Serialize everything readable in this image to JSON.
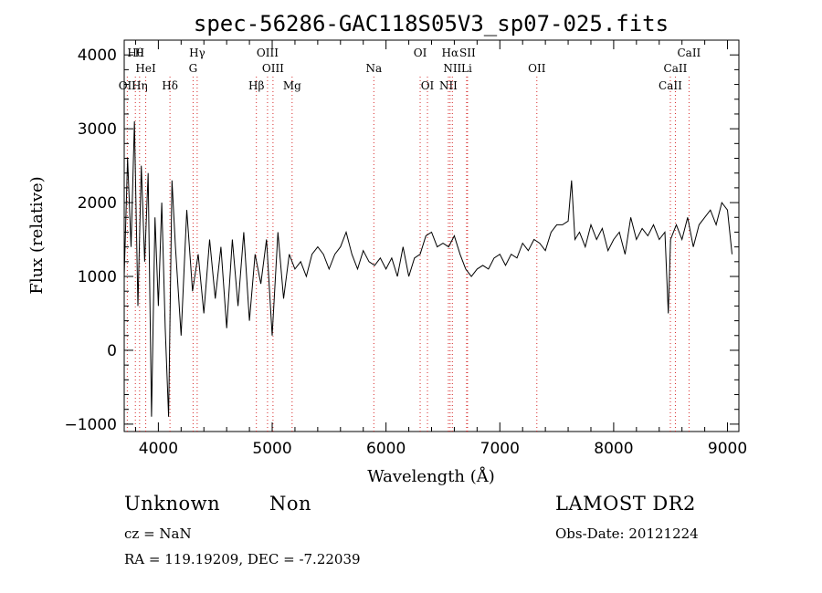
{
  "chart_data": {
    "type": "line",
    "title": "spec-56286-GAC118S05V3_sp07-025.fits",
    "xlabel": "Wavelength (Å)",
    "ylabel": "Flux (relative)",
    "xlim": [
      3700,
      9100
    ],
    "ylim": [
      -1100,
      4200
    ],
    "xticks": [
      4000,
      5000,
      6000,
      7000,
      8000,
      9000
    ],
    "yticks": [
      -1000,
      0,
      1000,
      2000,
      3000,
      4000
    ],
    "line_color": "#000000",
    "marker_color": "#d62828",
    "grid": false,
    "series": [
      {
        "x": [
          3700,
          3730,
          3760,
          3790,
          3820,
          3850,
          3880,
          3910,
          3940,
          3970,
          4000,
          4030,
          4060,
          4090,
          4120,
          4150,
          4200,
          4250,
          4300,
          4350,
          4400,
          4450,
          4500,
          4550,
          4600,
          4650,
          4700,
          4750,
          4800,
          4850,
          4900,
          4950,
          5000,
          5050,
          5100,
          5150,
          5200,
          5250,
          5300,
          5350,
          5400,
          5450,
          5500,
          5550,
          5600,
          5650,
          5700,
          5750,
          5800,
          5850,
          5900,
          5950,
          6000,
          6050,
          6100,
          6150,
          6200,
          6250,
          6300,
          6350,
          6400,
          6450,
          6500,
          6550,
          6600,
          6650,
          6700,
          6750,
          6800,
          6850,
          6900,
          6950,
          7000,
          7050,
          7100,
          7150,
          7200,
          7250,
          7300,
          7350,
          7400,
          7450,
          7500,
          7550,
          7600,
          7630,
          7660,
          7700,
          7750,
          7800,
          7850,
          7900,
          7950,
          8000,
          8050,
          8100,
          8150,
          8200,
          8250,
          8300,
          8350,
          8400,
          8450,
          8480,
          8500,
          8550,
          8600,
          8650,
          8700,
          8750,
          8800,
          8850,
          8900,
          8950,
          9000,
          9040
        ],
        "y": [
          1000,
          2600,
          1400,
          3100,
          600,
          2500,
          1200,
          2400,
          -900,
          1800,
          600,
          2000,
          300,
          -900,
          2300,
          1400,
          200,
          1900,
          800,
          1300,
          500,
          1500,
          700,
          1400,
          300,
          1500,
          600,
          1600,
          400,
          1300,
          900,
          1500,
          200,
          1600,
          700,
          1300,
          1100,
          1200,
          1000,
          1300,
          1400,
          1300,
          1100,
          1300,
          1400,
          1600,
          1300,
          1100,
          1350,
          1200,
          1150,
          1250,
          1100,
          1250,
          1000,
          1400,
          1000,
          1250,
          1300,
          1550,
          1600,
          1400,
          1450,
          1400,
          1550,
          1300,
          1100,
          1000,
          1100,
          1150,
          1100,
          1250,
          1300,
          1150,
          1300,
          1250,
          1450,
          1350,
          1500,
          1450,
          1350,
          1600,
          1700,
          1700,
          1750,
          2300,
          1500,
          1600,
          1400,
          1700,
          1500,
          1650,
          1350,
          1500,
          1600,
          1300,
          1800,
          1500,
          1650,
          1550,
          1700,
          1500,
          1600,
          500,
          1500,
          1700,
          1500,
          1800,
          1400,
          1700,
          1800,
          1900,
          1700,
          2000,
          1900,
          1300
        ]
      }
    ],
    "line_labels": [
      {
        "text": "Hθ",
        "x": 3798,
        "row": 1
      },
      {
        "text": "H",
        "x": 3835,
        "row": 1
      },
      {
        "text": "HeI",
        "x": 3889,
        "row": 2
      },
      {
        "text": "OII",
        "x": 3727,
        "row": 3
      },
      {
        "text": "Hη",
        "x": 3835,
        "row": 3
      },
      {
        "text": "Hδ",
        "x": 4102,
        "row": 3
      },
      {
        "text": "Hγ",
        "x": 4341,
        "row": 1
      },
      {
        "text": "G",
        "x": 4305,
        "row": 2
      },
      {
        "text": "OIII",
        "x": 4959,
        "row": 1
      },
      {
        "text": "OIII",
        "x": 5007,
        "row": 2
      },
      {
        "text": "Hβ",
        "x": 4861,
        "row": 3
      },
      {
        "text": "Mg",
        "x": 5175,
        "row": 3
      },
      {
        "text": "Na",
        "x": 5893,
        "row": 2
      },
      {
        "text": "OI",
        "x": 6300,
        "row": 1
      },
      {
        "text": "OI",
        "x": 6364,
        "row": 3
      },
      {
        "text": "Hα",
        "x": 6563,
        "row": 1
      },
      {
        "text": "SII",
        "x": 6716,
        "row": 1
      },
      {
        "text": "NII",
        "x": 6583,
        "row": 2
      },
      {
        "text": "Li",
        "x": 6708,
        "row": 2
      },
      {
        "text": "NII",
        "x": 6548,
        "row": 3
      },
      {
        "text": "OII",
        "x": 7325,
        "row": 2
      },
      {
        "text": "CaII",
        "x": 8662,
        "row": 1
      },
      {
        "text": "CaII",
        "x": 8542,
        "row": 2
      },
      {
        "text": "CaII",
        "x": 8498,
        "row": 3
      }
    ],
    "marker_lines": [
      3727,
      3798,
      3835,
      3889,
      4102,
      4305,
      4341,
      4861,
      4959,
      5007,
      5175,
      5893,
      6300,
      6364,
      6548,
      6563,
      6583,
      6708,
      6716,
      7325,
      8498,
      8542,
      8662
    ]
  },
  "info": {
    "class": "Unknown",
    "subclass": "Non",
    "cz": "cz = NaN",
    "coords": "RA = 119.19209, DEC =  -7.22039",
    "survey": "LAMOST DR2",
    "obsdate": "Obs-Date: 20121224"
  }
}
